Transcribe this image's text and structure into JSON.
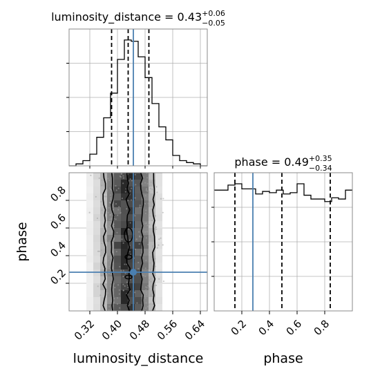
{
  "chart_data": {
    "type": "corner",
    "parameters": [
      "luminosity_distance",
      "phase"
    ],
    "truths": {
      "luminosity_distance": 0.446,
      "phase": 0.28
    },
    "colors": {
      "truth": "#4a7fb0",
      "hist": "#000000",
      "quantile": "#000000",
      "grid": "#b0b0b0",
      "scatter": "#a0a0a0"
    },
    "grid": true,
    "panels": [
      {
        "id": "hist_luminosity_distance",
        "kind": "hist1d",
        "title_main": "luminosity_distance = 0.43",
        "title_plus": "+0.06",
        "title_minus": "−0.05",
        "xlim": [
          0.26,
          0.66
        ],
        "quantiles": [
          0.383,
          0.431,
          0.491
        ],
        "bin_edges": [
          0.26,
          0.28,
          0.3,
          0.32,
          0.34,
          0.36,
          0.38,
          0.4,
          0.42,
          0.44,
          0.46,
          0.48,
          0.5,
          0.52,
          0.54,
          0.56,
          0.58,
          0.6,
          0.62,
          0.64,
          0.66
        ],
        "counts": [
          0.0,
          0.015,
          0.04,
          0.09,
          0.22,
          0.37,
          0.56,
          0.82,
          0.97,
          0.96,
          0.84,
          0.68,
          0.48,
          0.3,
          0.2,
          0.08,
          0.04,
          0.025,
          0.015,
          0.0
        ]
      },
      {
        "id": "hist_phase",
        "kind": "hist1d",
        "title_main": "phase = 0.49",
        "title_plus": "+0.35",
        "title_minus": "−0.34",
        "xlim": [
          0.0,
          1.0
        ],
        "quantiles": [
          0.15,
          0.49,
          0.84
        ],
        "bin_edges": [
          0.0,
          0.05,
          0.1,
          0.15,
          0.2,
          0.25,
          0.3,
          0.35,
          0.4,
          0.45,
          0.5,
          0.55,
          0.6,
          0.65,
          0.7,
          0.75,
          0.8,
          0.85,
          0.9,
          0.95,
          1.0
        ],
        "counts": [
          0.95,
          0.95,
          0.99,
          1.0,
          0.96,
          0.96,
          0.92,
          0.94,
          0.93,
          0.95,
          0.92,
          0.93,
          1.0,
          0.91,
          0.88,
          0.88,
          0.86,
          0.89,
          0.88,
          0.95
        ]
      },
      {
        "id": "joint",
        "kind": "hist2d",
        "xlim": [
          0.26,
          0.66
        ],
        "ylim": [
          0.0,
          1.0
        ],
        "x_cells": [
          0.32,
          0.34,
          0.36,
          0.38,
          0.4,
          0.42,
          0.44,
          0.46,
          0.48,
          0.5,
          0.52
        ],
        "x_cell_density": [
          0.08,
          0.18,
          0.35,
          0.55,
          0.78,
          0.96,
          0.98,
          0.8,
          0.58,
          0.35,
          0.15
        ],
        "contour_x_offsets": [
          0.403,
          0.432,
          0.471
        ],
        "contour_mid": [
          0.362,
          0.386,
          0.431,
          0.471,
          0.505
        ]
      }
    ],
    "axes": {
      "luminosity_distance": {
        "label": "luminosity_distance",
        "ticks": [
          0.32,
          0.4,
          0.48,
          0.56,
          0.64
        ],
        "tick_labels": [
          "0.32",
          "0.40",
          "0.48",
          "0.56",
          "0.64"
        ]
      },
      "phase_x": {
        "label": "phase",
        "ticks": [
          0.2,
          0.4,
          0.6,
          0.8
        ],
        "tick_labels": [
          "0.2",
          "0.4",
          "0.6",
          "0.8"
        ]
      },
      "phase_y": {
        "label": "phase",
        "ticks": [
          0.2,
          0.4,
          0.6,
          0.8
        ],
        "tick_labels": [
          "0.2",
          "0.4",
          "0.6",
          "0.8"
        ]
      }
    }
  }
}
